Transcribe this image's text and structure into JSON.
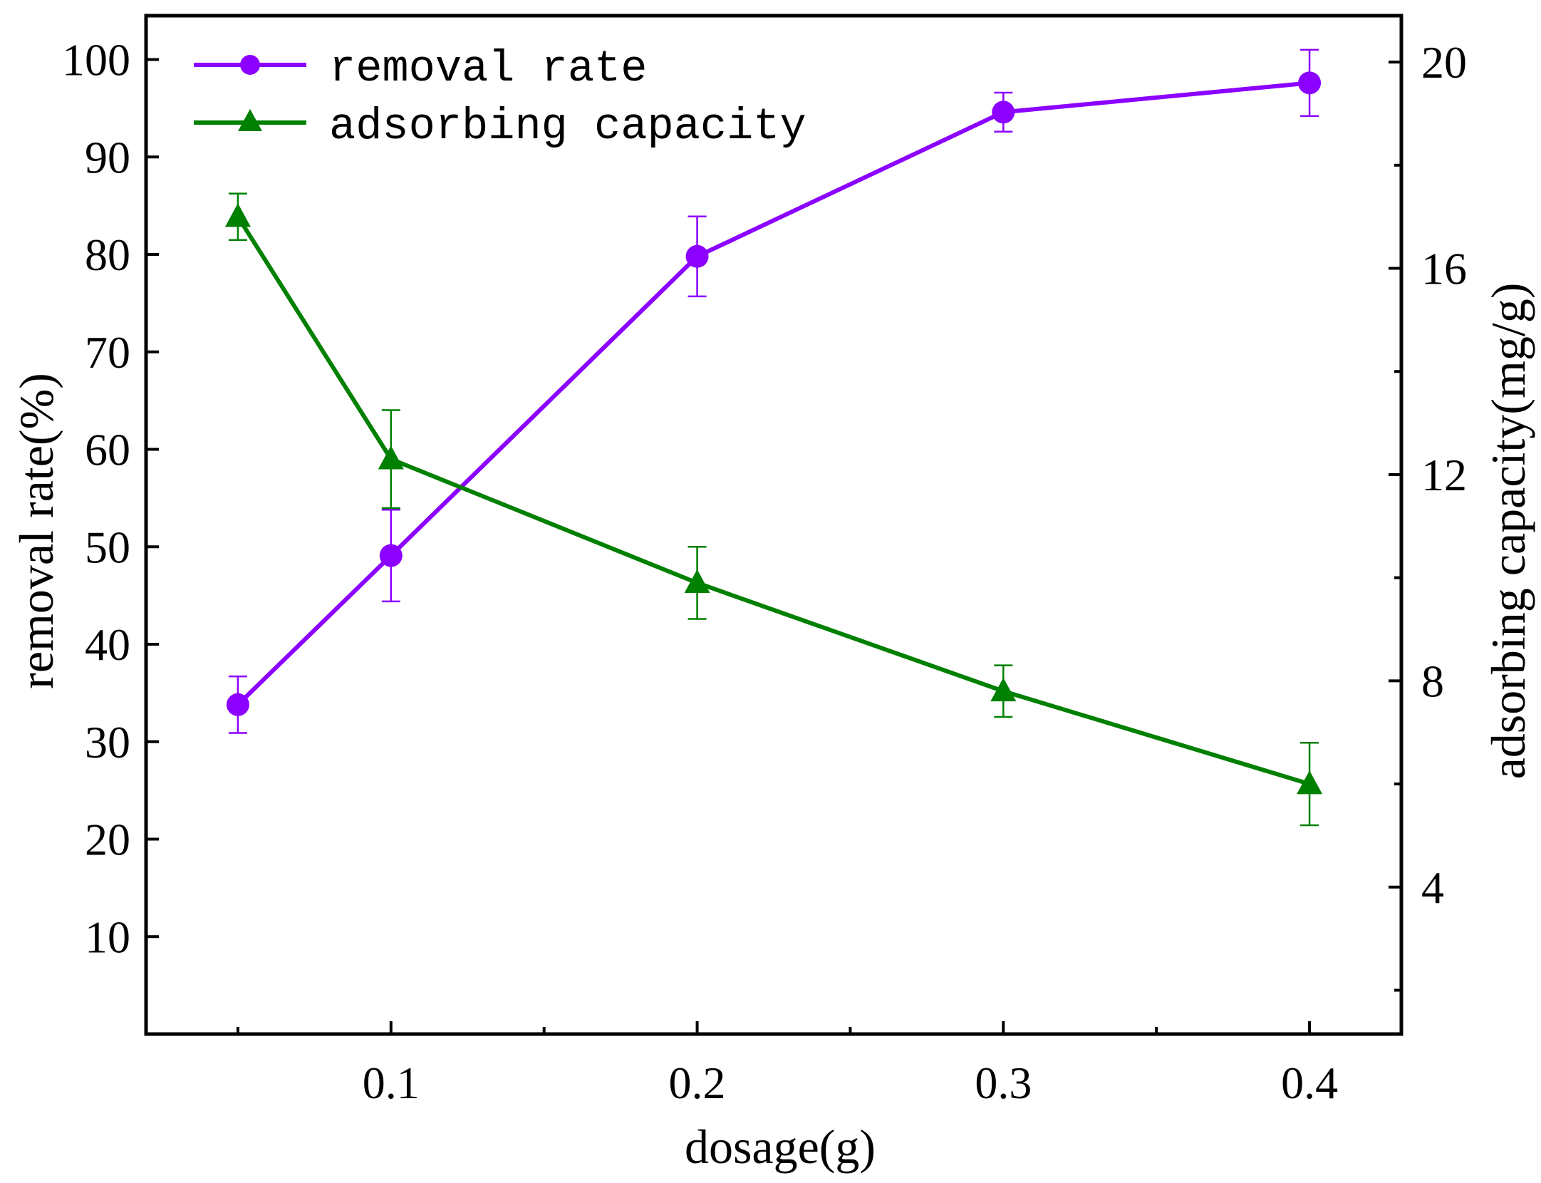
{
  "chart_data": {
    "type": "line",
    "title": "",
    "xlabel": "dosage(g)",
    "ylabel": "removal rate(%)",
    "y2label": "adsorbing capacity(mg/g)",
    "xlim": [
      0.02,
      0.43
    ],
    "ylim": [
      0,
      104.5
    ],
    "y2lim": [
      1.15,
      20.9
    ],
    "x_ticks": [
      0.1,
      0.2,
      0.3,
      0.4
    ],
    "x_tick_labels": [
      "0.1",
      "0.2",
      "0.3",
      "0.4"
    ],
    "y_ticks": [
      10,
      20,
      30,
      40,
      50,
      60,
      70,
      80,
      90,
      100
    ],
    "y_tick_labels": [
      "10",
      "20",
      "30",
      "40",
      "50",
      "60",
      "70",
      "80",
      "90",
      "100"
    ],
    "y2_ticks": [
      4,
      8,
      12,
      16,
      20
    ],
    "y2_tick_labels": [
      "4",
      "8",
      "12",
      "16",
      "20"
    ],
    "legend_position": "top-left",
    "series": [
      {
        "name": "removal rate",
        "axis": "left",
        "marker": "circle",
        "color": "#8B00FF",
        "x": [
          0.05,
          0.1,
          0.2,
          0.3,
          0.4
        ],
        "values": [
          33.8,
          49.1,
          79.8,
          94.6,
          97.6
        ],
        "errors": [
          2.9,
          4.7,
          4.1,
          2.0,
          3.4
        ]
      },
      {
        "name": "adsorbing capacity",
        "axis": "right",
        "marker": "triangle",
        "color": "#008000",
        "x": [
          0.05,
          0.1,
          0.2,
          0.3,
          0.4
        ],
        "values": [
          17.0,
          12.3,
          9.9,
          7.8,
          6.0
        ],
        "errors": [
          0.45,
          0.95,
          0.7,
          0.5,
          0.8
        ]
      }
    ]
  }
}
